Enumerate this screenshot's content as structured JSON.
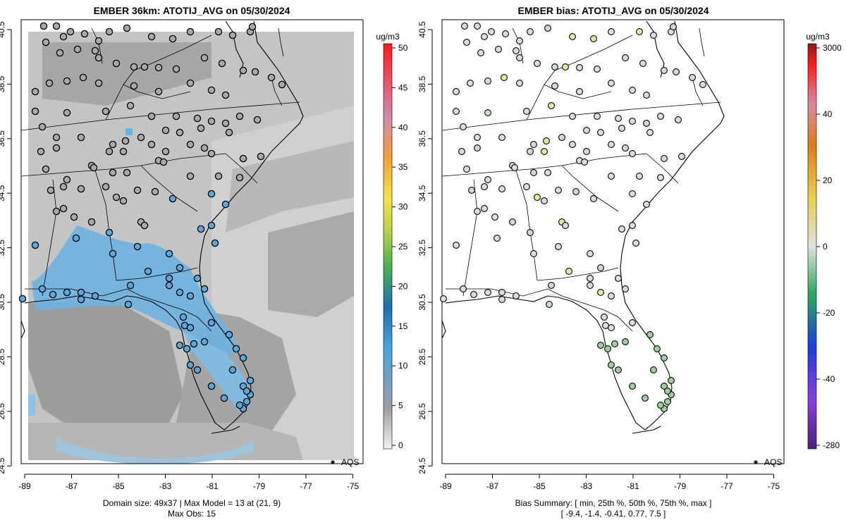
{
  "left_panel": {
    "title": "EMBER 36km: ATOTIJ_AVG on 05/30/2024",
    "colorbar_unit": "ug/m3",
    "colorbar_ticks": [
      "50",
      "45",
      "40",
      "35",
      "30",
      "25",
      "20",
      "15",
      "10",
      "5",
      "0"
    ],
    "legend_label": "AQS",
    "footer_line1": "Domain size: 49x37 | Max Model = 13 at (21, 9)",
    "footer_line2": "Max Obs: 15"
  },
  "right_panel": {
    "title": "EMBER bias: ATOTIJ_AVG on 05/30/2024",
    "colorbar_unit": "ug/m3",
    "colorbar_ticks": [
      "3000",
      "40",
      "20",
      "0",
      "-20",
      "-40",
      "-280"
    ],
    "legend_label": "AQS",
    "footer_line1": "Bias Summary: [ min, 25th %, 50th %, 75th %, max ]",
    "footer_line2": "[ -9.4,   -1.4,   -0.41,   0.77,   7.5 ]"
  },
  "axes": {
    "lon_ticks": [
      "-89",
      "-87",
      "-85",
      "-83",
      "-81",
      "-79",
      "-77",
      "-75"
    ],
    "lat_ticks": [
      "40.5",
      "38.5",
      "36.5",
      "34.5",
      "32.5",
      "30.5",
      "28.5",
      "26.5",
      "24.5"
    ]
  },
  "colors": {
    "monitor_gray": "#a9a9a9",
    "monitor_blue": "#5aa9dd",
    "model_blue": "#66b3e8",
    "bias_green": "#9fcf9f",
    "bias_yellow": "#e8e8a0"
  }
}
